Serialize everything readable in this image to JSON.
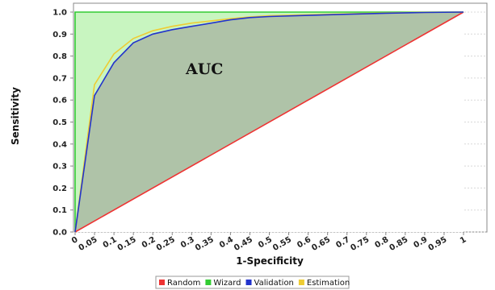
{
  "chart_data": {
    "type": "line",
    "xlabel": "1-Specificity",
    "ylabel": "Sensitivity",
    "xlim": [
      0,
      1
    ],
    "ylim": [
      0,
      1
    ],
    "x_ticks": [
      "0",
      "0.05",
      "0.1",
      "0.15",
      "0.2",
      "0.25",
      "0.3",
      "0.35",
      "0.4",
      "0.45",
      "0.5",
      "0.55",
      "0.6",
      "0.65",
      "0.7",
      "0.75",
      "0.8",
      "0.85",
      "0.9",
      "0.95",
      "1"
    ],
    "y_ticks": [
      "0.0",
      "0.1",
      "0.2",
      "0.3",
      "0.4",
      "0.5",
      "0.6",
      "0.7",
      "0.8",
      "0.9",
      "1.0"
    ],
    "grid": true,
    "legend_position": "bottom",
    "annotation": "AUC",
    "series": [
      {
        "name": "Random",
        "color": "#ee3333",
        "x": [
          0,
          1
        ],
        "y": [
          0,
          1
        ]
      },
      {
        "name": "Wizard",
        "color": "#33cc33",
        "x": [
          0,
          0,
          1
        ],
        "y": [
          0,
          1,
          1
        ]
      },
      {
        "name": "Validation",
        "color": "#2233cc",
        "x": [
          0,
          0.05,
          0.1,
          0.15,
          0.2,
          0.25,
          0.3,
          0.35,
          0.4,
          0.45,
          0.5,
          0.6,
          0.7,
          0.8,
          0.9,
          1.0
        ],
        "y": [
          0,
          0.62,
          0.77,
          0.86,
          0.9,
          0.92,
          0.935,
          0.95,
          0.965,
          0.975,
          0.98,
          0.985,
          0.99,
          0.995,
          0.998,
          1.0
        ]
      },
      {
        "name": "Estimation",
        "color": "#eecc33",
        "x": [
          0,
          0.05,
          0.1,
          0.15,
          0.2,
          0.25,
          0.3,
          0.35,
          0.4,
          0.45,
          0.5,
          0.6,
          0.7,
          0.8,
          0.9,
          1.0
        ],
        "y": [
          0,
          0.67,
          0.81,
          0.88,
          0.915,
          0.935,
          0.95,
          0.96,
          0.97,
          0.978,
          0.983,
          0.988,
          0.992,
          0.996,
          0.999,
          1.0
        ]
      }
    ]
  },
  "colors": {
    "random_fill": "#aec0a6",
    "wizard_fill": "#c8f5c0"
  }
}
